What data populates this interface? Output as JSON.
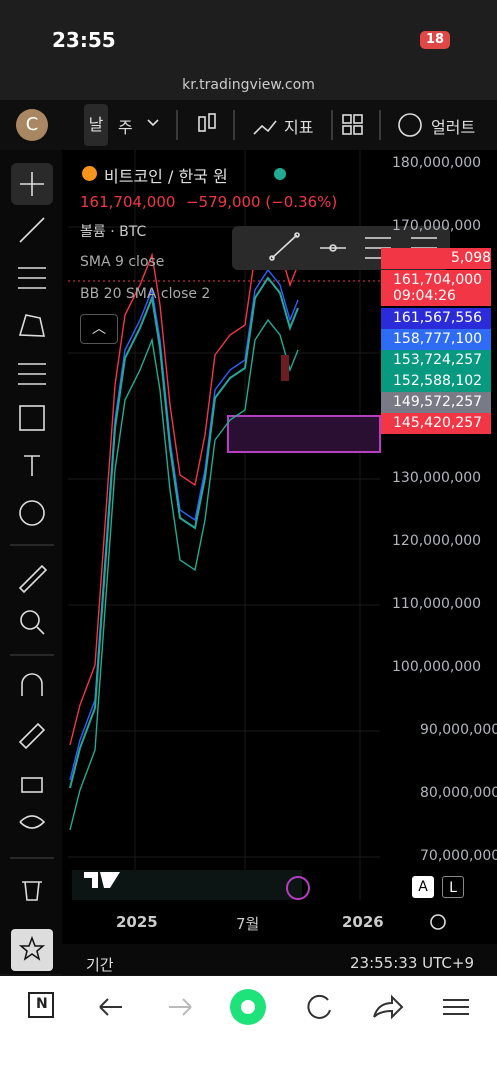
{
  "status_bar": {
    "time": "23:55",
    "battery": "18"
  },
  "address_bar": {
    "url": "kr.tradingview.com"
  },
  "top_toolbar": {
    "avatar": "C",
    "interval_prev": "날",
    "interval": "주",
    "indicators": "지표",
    "alerts": "얼러트"
  },
  "legend": {
    "symbol": "비트코인 / 한국 원",
    "price": "161,704,000",
    "change": "−579,000 (−0.36%)",
    "volume": "볼륨 · BTC",
    "sma": "SMA 9 close",
    "bb": "BB 20 SMA close 2"
  },
  "price_axis": {
    "labels": [
      "180,000,000",
      "170,000,000",
      "130,000,000",
      "120,000,000",
      "110,000,000",
      "100,000,000",
      "90,000,000",
      "80,000,000",
      "70,000,000"
    ]
  },
  "price_tags": [
    "5,098",
    "161,704,000",
    "09:04:26",
    "161,567,556",
    "158,777,100",
    "153,724,257",
    "152,588,102",
    "149,572,257",
    "145,420,257"
  ],
  "time_axis": [
    "2025",
    "7월",
    "2026"
  ],
  "scale_buttons": [
    "A",
    "L"
  ],
  "footer": {
    "range": "기간",
    "clock": "23:55:33 UTC+9"
  },
  "browser_nav": {
    "tabs": "N"
  }
}
